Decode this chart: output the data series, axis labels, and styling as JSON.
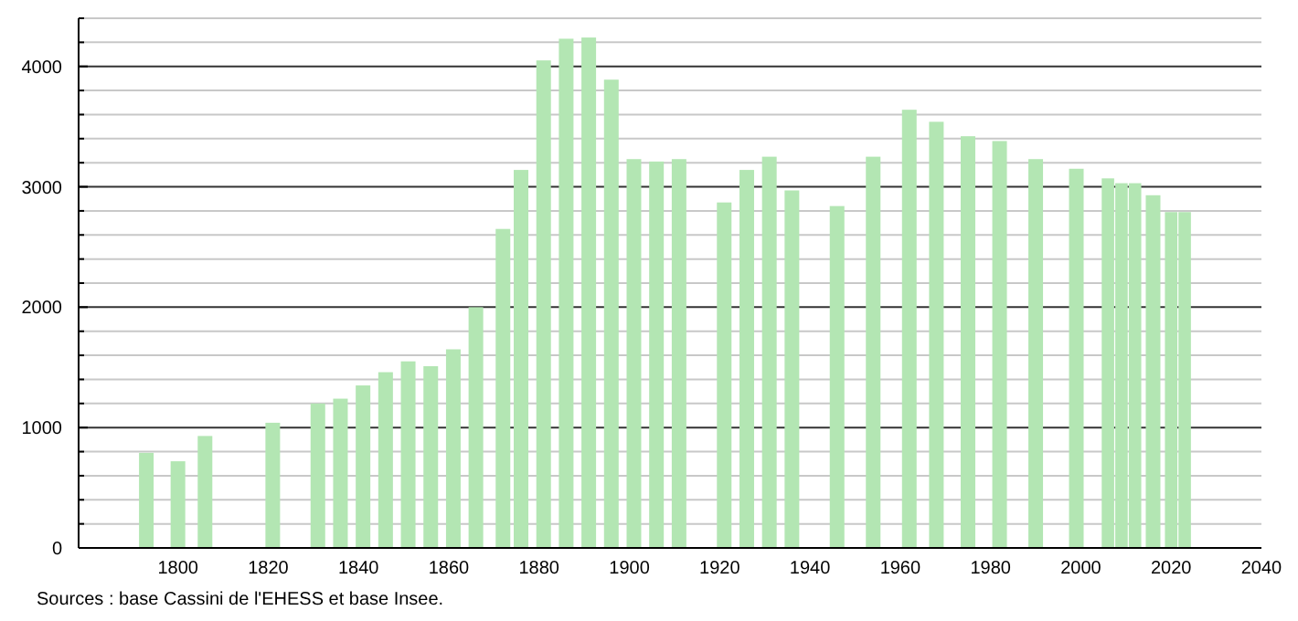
{
  "chart_data": {
    "type": "bar",
    "x": [
      1793,
      1800,
      1806,
      1821,
      1831,
      1836,
      1841,
      1846,
      1851,
      1856,
      1861,
      1866,
      1872,
      1876,
      1881,
      1886,
      1891,
      1896,
      1901,
      1906,
      1911,
      1921,
      1926,
      1931,
      1936,
      1946,
      1954,
      1962,
      1968,
      1975,
      1982,
      1990,
      1999,
      2006,
      2009,
      2012,
      2016,
      2020,
      2023
    ],
    "values": [
      790,
      720,
      930,
      1040,
      1200,
      1240,
      1350,
      1460,
      1550,
      1510,
      1650,
      2000,
      2650,
      3140,
      4050,
      4230,
      4240,
      3890,
      3230,
      3210,
      3230,
      2870,
      3140,
      3250,
      2970,
      2840,
      3250,
      3640,
      3540,
      3420,
      3380,
      3230,
      3150,
      3070,
      3030,
      3030,
      2930,
      2790,
      2790
    ],
    "color": "#b3e6b3",
    "xlim": [
      1778,
      2040
    ],
    "xticks": [
      1800,
      1820,
      1840,
      1860,
      1880,
      1900,
      1920,
      1940,
      1960,
      1980,
      2000,
      2020,
      2040
    ],
    "ylim": [
      0,
      4400
    ],
    "yticks": [
      0,
      {
        "value": 200,
        "label": null
      },
      {
        "value": 400,
        "label": null
      },
      {
        "value": 600,
        "label": null
      },
      {
        "value": 800,
        "label": null
      },
      1000,
      {
        "value": 1200,
        "label": null
      },
      {
        "value": 1400,
        "label": null
      },
      {
        "value": 1600,
        "label": null
      },
      {
        "value": 1800,
        "label": null
      },
      2000,
      {
        "value": 2200,
        "label": null
      },
      {
        "value": 2400,
        "label": null
      },
      {
        "value": 2600,
        "label": null
      },
      {
        "value": 2800,
        "label": null
      },
      3000,
      {
        "value": 3200,
        "label": null
      },
      {
        "value": 3400,
        "label": null
      },
      {
        "value": 3600,
        "label": null
      },
      {
        "value": 3800,
        "label": null
      },
      4000,
      {
        "value": 4200,
        "label": null
      },
      {
        "value": 4400,
        "label": null
      }
    ],
    "grid": "y",
    "annotations": [
      "Sources : base Cassini de l'EHESS et base Insee."
    ]
  }
}
